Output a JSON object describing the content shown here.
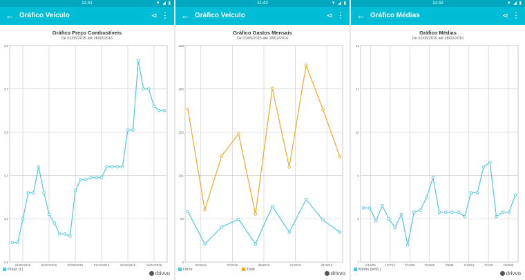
{
  "screens": [
    {
      "status_time": "11:41",
      "status_icons": "▼ ◢ ▮",
      "appbar_title": "Gráfico Veículo",
      "chart_data": {
        "type": "line",
        "title": "Gráfico Preço Combustíveis",
        "subtitle": "De 01/05/2015 até 28/02/2016",
        "ylim": [
          2.9,
          3.9
        ],
        "y_ticks": [
          "2,9",
          "3,1",
          "3,3",
          "3,5",
          "3,7",
          "3,9"
        ],
        "x_ticks": [
          "01/05/2015",
          "04/07/2015",
          "02/09/2015",
          "01/10/2015",
          "04/12/2015",
          "15/01/2016"
        ],
        "series": [
          {
            "name": "Preço (L)",
            "color": "#4dc8dc",
            "values": [
              2.99,
              2.99,
              3.1,
              3.22,
              3.22,
              3.34,
              3.22,
              3.12,
              3.08,
              3.03,
              3.03,
              3.02,
              3.23,
              3.28,
              3.28,
              3.29,
              3.29,
              3.29,
              3.34,
              3.34,
              3.34,
              3.34,
              3.51,
              3.51,
              3.83,
              3.7,
              3.7,
              3.62,
              3.6,
              3.6
            ]
          }
        ]
      }
    },
    {
      "status_time": "11:42",
      "status_icons": "▼ ◢ ▮",
      "appbar_title": "Gráfico Veículo",
      "chart_data": {
        "type": "line",
        "title": "Gráfico Gastos Mensais",
        "subtitle": "De 01/05/2015 até 28/02/2016",
        "ylim": [
          0,
          253
        ],
        "y_ticks": [
          "0",
          "50",
          "101",
          "152",
          "202",
          "253"
        ],
        "x_ticks": [
          "05/2015",
          "07/2015",
          "09/2015",
          "11/2015",
          "01/2016"
        ],
        "series": [
          {
            "name": "Litros",
            "color": "#4dc8dc",
            "values": [
              59,
              21,
              41,
              50,
              21,
              65,
              35,
              73,
              49,
              35
            ]
          },
          {
            "name": "Total",
            "color": "#f5a623",
            "values": [
              178,
              61,
              124,
              150,
              56,
              203,
              111,
              230,
              178,
              123
            ]
          }
        ]
      }
    },
    {
      "status_time": "11:42",
      "status_icons": "▼ ◢ ▮",
      "appbar_title": "Gráfico Médias",
      "chart_data": {
        "type": "line",
        "title": "Gráfico Médias",
        "subtitle": "De 01/05/2015 até 28/02/2016",
        "ylim": [
          7,
          12
        ],
        "y_ticks": [
          "7",
          "8",
          "9",
          "10",
          "11",
          "12"
        ],
        "x_ticks": [
          "1/19/05",
          "17/7/12",
          "7/10/05",
          "7/10/05",
          "7/8/05",
          "7/10/64",
          "7/4/40",
          "7/10/96"
        ],
        "series": [
          {
            "name": "Média (km/L)",
            "color": "#4dc8dc",
            "values": [
              8.25,
              8.25,
              7.95,
              8.3,
              8.0,
              7.8,
              8.1,
              7.4,
              8.15,
              8.2,
              8.5,
              8.95,
              8.15,
              8.15,
              8.15,
              8.15,
              8.05,
              8.6,
              8.6,
              9.2,
              9.3,
              8.05,
              8.15,
              8.15,
              8.55
            ]
          }
        ]
      }
    }
  ],
  "logo_text": "drivvo"
}
